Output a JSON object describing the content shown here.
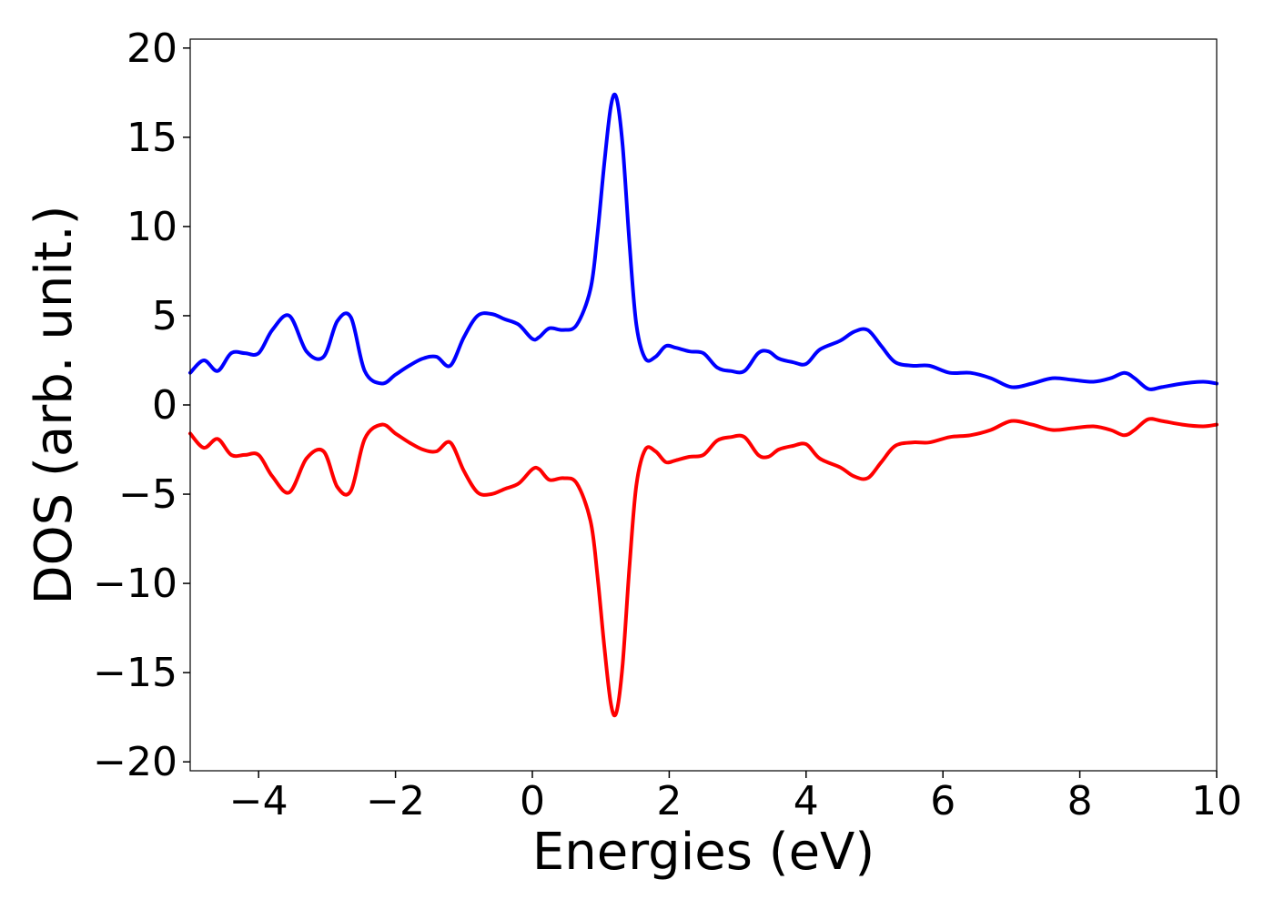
{
  "chart_data": {
    "type": "line",
    "xlabel": "Energies (eV)",
    "ylabel": "DOS (arb. unit.)",
    "xlim": [
      -5,
      10
    ],
    "ylim": [
      -20.5,
      20.5
    ],
    "xticks": [
      -4,
      -2,
      0,
      2,
      4,
      6,
      8,
      10
    ],
    "xtick_labels": [
      "−4",
      "−2",
      "0",
      "2",
      "4",
      "6",
      "8",
      "10"
    ],
    "yticks": [
      -20,
      -15,
      -10,
      -5,
      0,
      5,
      10,
      15,
      20
    ],
    "ytick_labels": [
      "−20",
      "−15",
      "−10",
      "−5",
      "0",
      "5",
      "10",
      "15",
      "20"
    ],
    "grid": false,
    "legend": "none",
    "series": [
      {
        "color": "#0000ff",
        "x": [
          -5.0,
          -4.8,
          -4.6,
          -4.4,
          -4.2,
          -4.0,
          -3.8,
          -3.55,
          -3.3,
          -3.05,
          -2.85,
          -2.65,
          -2.45,
          -2.2,
          -2.0,
          -1.8,
          -1.6,
          -1.4,
          -1.2,
          -1.0,
          -0.8,
          -0.6,
          -0.4,
          -0.2,
          0.0,
          0.1,
          0.25,
          0.45,
          0.65,
          0.85,
          0.95,
          1.05,
          1.15,
          1.23,
          1.32,
          1.42,
          1.52,
          1.65,
          1.8,
          1.95,
          2.1,
          2.3,
          2.5,
          2.7,
          2.9,
          3.1,
          3.3,
          3.45,
          3.6,
          3.8,
          4.0,
          4.2,
          4.5,
          4.7,
          4.9,
          5.1,
          5.3,
          5.55,
          5.8,
          6.1,
          6.4,
          6.7,
          7.0,
          7.3,
          7.6,
          7.9,
          8.2,
          8.45,
          8.65,
          8.8,
          9.0,
          9.2,
          9.5,
          9.8,
          10.0
        ],
        "values": [
          1.8,
          2.5,
          1.9,
          2.9,
          2.9,
          2.9,
          4.2,
          5.0,
          3.0,
          2.7,
          4.7,
          4.9,
          1.9,
          1.2,
          1.7,
          2.2,
          2.6,
          2.7,
          2.2,
          3.8,
          5.0,
          5.1,
          4.8,
          4.5,
          3.7,
          3.8,
          4.3,
          4.2,
          4.5,
          6.5,
          9.5,
          13.5,
          16.8,
          17.2,
          14.5,
          9.0,
          4.5,
          2.6,
          2.7,
          3.3,
          3.2,
          3.0,
          2.9,
          2.1,
          1.9,
          1.9,
          2.9,
          3.0,
          2.6,
          2.4,
          2.3,
          3.1,
          3.6,
          4.1,
          4.2,
          3.3,
          2.4,
          2.2,
          2.2,
          1.8,
          1.8,
          1.5,
          1.0,
          1.2,
          1.5,
          1.4,
          1.3,
          1.5,
          1.8,
          1.5,
          0.9,
          1.0,
          1.2,
          1.3,
          1.2
        ]
      },
      {
        "color": "#ff0000",
        "x": [
          -5.0,
          -4.8,
          -4.6,
          -4.4,
          -4.2,
          -4.0,
          -3.8,
          -3.55,
          -3.3,
          -3.05,
          -2.85,
          -2.65,
          -2.45,
          -2.2,
          -2.0,
          -1.8,
          -1.6,
          -1.4,
          -1.2,
          -1.0,
          -0.8,
          -0.6,
          -0.4,
          -0.2,
          0.0,
          0.1,
          0.25,
          0.45,
          0.65,
          0.85,
          0.95,
          1.05,
          1.15,
          1.23,
          1.32,
          1.42,
          1.52,
          1.65,
          1.8,
          1.95,
          2.1,
          2.3,
          2.5,
          2.7,
          2.9,
          3.1,
          3.3,
          3.45,
          3.6,
          3.8,
          4.0,
          4.2,
          4.5,
          4.7,
          4.9,
          5.1,
          5.3,
          5.55,
          5.8,
          6.1,
          6.4,
          6.7,
          7.0,
          7.3,
          7.6,
          7.9,
          8.2,
          8.45,
          8.65,
          8.8,
          9.0,
          9.2,
          9.5,
          9.8,
          10.0
        ],
        "values": [
          -1.6,
          -2.4,
          -1.9,
          -2.8,
          -2.8,
          -2.8,
          -4.0,
          -4.9,
          -3.0,
          -2.6,
          -4.6,
          -4.8,
          -1.9,
          -1.1,
          -1.6,
          -2.1,
          -2.5,
          -2.6,
          -2.1,
          -3.7,
          -4.9,
          -5.0,
          -4.7,
          -4.4,
          -3.6,
          -3.6,
          -4.2,
          -4.1,
          -4.4,
          -6.5,
          -9.5,
          -13.5,
          -16.8,
          -17.2,
          -14.5,
          -9.0,
          -4.5,
          -2.5,
          -2.6,
          -3.2,
          -3.1,
          -2.9,
          -2.8,
          -2.0,
          -1.8,
          -1.8,
          -2.8,
          -2.9,
          -2.5,
          -2.3,
          -2.2,
          -3.0,
          -3.5,
          -4.0,
          -4.1,
          -3.2,
          -2.3,
          -2.1,
          -2.1,
          -1.8,
          -1.7,
          -1.4,
          -0.9,
          -1.1,
          -1.4,
          -1.3,
          -1.2,
          -1.4,
          -1.7,
          -1.4,
          -0.8,
          -0.9,
          -1.1,
          -1.2,
          -1.1
        ]
      }
    ]
  }
}
